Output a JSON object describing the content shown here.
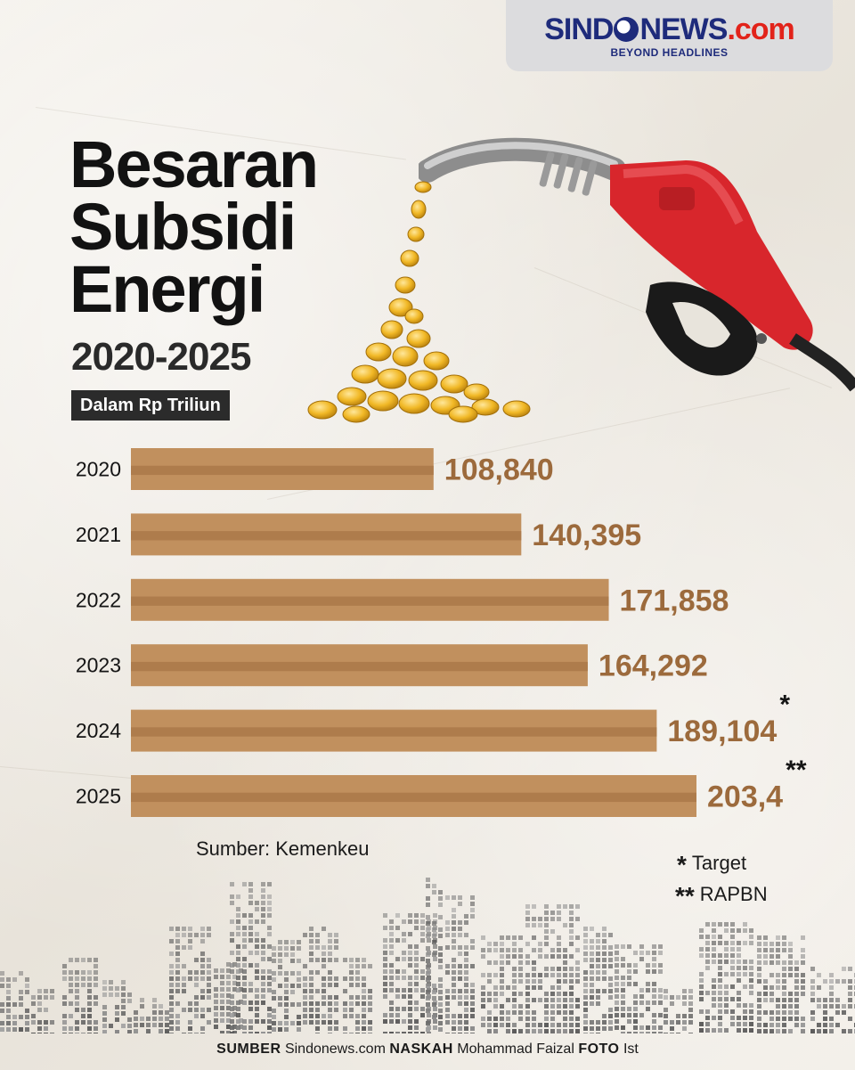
{
  "brand": {
    "name_part1": "SIND",
    "name_part2": "NEWS",
    "name_part3": ".com",
    "tagline": "BEYOND HEADLINES",
    "color_primary": "#1e2b7b",
    "color_accent": "#e2231a"
  },
  "title": {
    "line1": "Besaran",
    "line2": "Subsidi",
    "line3": "Energi",
    "years": "2020-2025",
    "unit": "Dalam Rp Triliun"
  },
  "chart_data": {
    "type": "bar",
    "orientation": "horizontal",
    "categories": [
      "2020",
      "2021",
      "2022",
      "2023",
      "2024",
      "2025"
    ],
    "values": [
      108.84,
      140.395,
      171.858,
      164.292,
      189.104,
      203.4
    ],
    "value_labels": [
      "108,840",
      "140,395",
      "171,858",
      "164,292",
      "189,104",
      "203,4"
    ],
    "markers": [
      "",
      "",
      "",
      "",
      "*",
      "**"
    ],
    "bar_color": "#c1905e",
    "bar_color_dark": "#ae7c4c",
    "label_color": "#9c6a3c",
    "xlim": [
      0,
      203.4
    ]
  },
  "source": "Sumber: Kemenkeu",
  "notes": [
    {
      "marker": "*",
      "text": "Target"
    },
    {
      "marker": "**",
      "text": "RAPBN"
    }
  ],
  "credits": {
    "source_label": "SUMBER",
    "source_value": "Sindonews.com",
    "writer_label": "NASKAH",
    "writer_value": "Mohammad Faizal",
    "photo_label": "FOTO",
    "photo_value": "Ist"
  },
  "icons": [
    "fuel-nozzle-icon",
    "gold-coins-icon",
    "city-skyline-icon"
  ]
}
